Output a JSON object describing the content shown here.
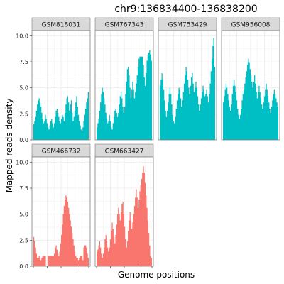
{
  "chart_data": {
    "type": "area",
    "title": "chr9:136834400-136838200",
    "xlabel": "Genome positions",
    "ylabel": "Mapped reads density",
    "ylim": [
      0,
      10.5
    ],
    "yticks": [
      "0.0",
      "2.5",
      "5.0",
      "7.5",
      "10.0"
    ],
    "ytick_values": [
      0,
      2.5,
      5,
      7.5,
      10
    ],
    "grid": true,
    "layout": "facet-wrap-4-columns",
    "panels": [
      {
        "name": "GSM818031",
        "group": "top",
        "values": [
          1.5,
          1.8,
          2.2,
          2.8,
          3.4,
          3.8,
          4.0,
          3.6,
          3.2,
          2.6,
          2.0,
          1.6,
          1.8,
          2.4,
          2.0,
          1.6,
          1.2,
          1.0,
          1.4,
          1.8,
          2.0,
          1.6,
          1.2,
          1.6,
          2.2,
          2.8,
          3.0,
          2.6,
          2.2,
          1.8,
          1.6,
          2.0,
          2.4,
          2.2,
          1.8,
          2.6,
          3.4,
          4.0,
          4.2,
          3.6,
          2.8,
          3.4,
          3.8,
          2.6,
          1.8,
          2.2,
          2.8,
          3.6,
          4.2,
          3.2,
          2.4,
          1.8,
          1.4,
          1.0,
          0.8,
          1.2,
          1.8,
          2.4,
          3.0,
          3.6,
          4.0,
          4.6
        ]
      },
      {
        "name": "GSM767343",
        "group": "top",
        "values": [
          1.2,
          1.6,
          2.0,
          2.8,
          3.6,
          4.4,
          5.0,
          4.6,
          4.0,
          3.4,
          2.6,
          2.0,
          1.6,
          1.8,
          2.4,
          1.8,
          1.2,
          1.0,
          1.6,
          2.2,
          2.8,
          3.0,
          2.6,
          2.2,
          2.6,
          3.4,
          4.2,
          4.6,
          4.0,
          3.2,
          2.6,
          3.2,
          4.4,
          5.6,
          6.8,
          7.0,
          6.2,
          5.0,
          4.0,
          4.8,
          5.6,
          4.8,
          4.0,
          4.6,
          5.4,
          6.2,
          7.0,
          7.8,
          8.0,
          8.0,
          8.0,
          8.0,
          7.2,
          6.0,
          5.2,
          6.4,
          7.6,
          8.2,
          8.4,
          8.6,
          8.2,
          7.6
        ]
      },
      {
        "name": "GSM753429",
        "group": "top",
        "values": [
          5.2,
          5.8,
          6.4,
          5.8,
          4.8,
          3.8,
          2.8,
          2.2,
          2.8,
          3.6,
          4.4,
          5.0,
          4.4,
          3.4,
          2.4,
          1.8,
          1.6,
          2.2,
          3.0,
          3.8,
          4.4,
          5.0,
          4.8,
          4.0,
          3.2,
          3.8,
          4.6,
          5.4,
          6.2,
          7.0,
          6.6,
          5.8,
          5.0,
          4.4,
          5.2,
          6.0,
          6.4,
          5.4,
          4.6,
          5.0,
          5.6,
          5.0,
          4.2,
          3.4,
          2.8,
          3.4,
          4.0,
          4.6,
          5.2,
          4.8,
          4.2,
          4.4,
          4.8,
          4.2,
          3.6,
          4.4,
          5.4,
          6.6,
          7.8,
          9.0,
          9.8,
          7.0
        ]
      },
      {
        "name": "GSM956008",
        "group": "top",
        "values": [
          3.6,
          4.2,
          4.8,
          5.4,
          5.0,
          4.4,
          3.8,
          3.2,
          2.8,
          3.4,
          4.4,
          5.2,
          5.8,
          5.2,
          4.6,
          3.8,
          3.0,
          2.4,
          2.0,
          2.4,
          3.0,
          3.8,
          4.4,
          4.8,
          5.4,
          6.0,
          6.6,
          7.2,
          7.8,
          7.4,
          6.8,
          6.2,
          5.6,
          5.0,
          5.6,
          6.2,
          5.4,
          4.6,
          4.0,
          4.6,
          5.2,
          4.6,
          4.0,
          3.4,
          3.0,
          3.6,
          4.2,
          4.8,
          5.4,
          4.8,
          4.2,
          3.6,
          3.0,
          2.6,
          3.2,
          3.8,
          4.4,
          4.8,
          4.4,
          4.0,
          3.6,
          3.2
        ]
      },
      {
        "name": "GSM466732",
        "group": "bottom",
        "values": [
          2.8,
          2.4,
          1.8,
          1.2,
          0.8,
          0.8,
          1.0,
          0.8,
          0.6,
          0.8,
          1.0,
          1.0,
          1.0,
          1.0,
          0.0,
          0.0,
          1.0,
          1.0,
          1.0,
          1.0,
          1.0,
          1.0,
          1.0,
          1.2,
          1.8,
          2.0,
          1.6,
          1.2,
          1.0,
          1.4,
          2.2,
          3.0,
          4.0,
          5.0,
          5.8,
          6.4,
          6.8,
          6.6,
          6.2,
          5.6,
          5.0,
          4.4,
          3.8,
          3.2,
          2.6,
          2.0,
          1.4,
          1.0,
          0.8,
          0.8,
          0.6,
          0.8,
          1.0,
          1.0,
          1.0,
          0.6,
          1.8,
          2.0,
          2.0,
          1.8,
          1.2,
          0.8
        ]
      },
      {
        "name": "GSM663427",
        "group": "bottom",
        "values": [
          1.4,
          1.6,
          2.0,
          2.4,
          1.8,
          1.2,
          0.8,
          1.2,
          1.8,
          2.6,
          3.0,
          2.4,
          1.8,
          1.4,
          1.8,
          2.6,
          3.4,
          4.2,
          3.6,
          2.8,
          2.2,
          3.0,
          4.0,
          5.0,
          5.6,
          5.0,
          4.4,
          5.2,
          6.0,
          6.2,
          5.0,
          3.8,
          2.6,
          1.8,
          2.4,
          3.4,
          4.4,
          5.2,
          4.4,
          3.6,
          4.2,
          5.0,
          5.8,
          6.6,
          7.4,
          6.6,
          5.6,
          6.4,
          7.2,
          7.8,
          8.4,
          9.0,
          9.6,
          9.0,
          8.0,
          6.8,
          5.6,
          4.4,
          3.2,
          2.0,
          1.0,
          0.8
        ]
      }
    ],
    "colors": {
      "top": "#00BFC4",
      "bottom": "#F8766D",
      "strip_bg": "#D9D9D9",
      "strip_border": "#7F7F7F",
      "panel_border": "#7F7F7F",
      "grid": "#EBEBEB"
    }
  }
}
